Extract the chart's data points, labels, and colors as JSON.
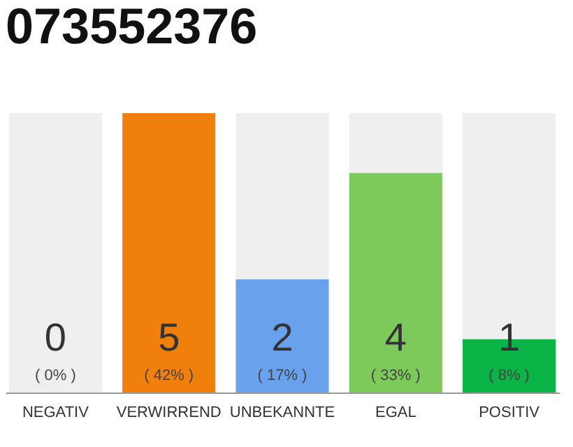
{
  "chart_data": {
    "type": "bar",
    "title": "073552376",
    "categories": [
      "NEGATIV",
      "VERWIRREND",
      "UNBEKANNTE",
      "EGAL",
      "POSITIV"
    ],
    "series": [
      {
        "colors": [
          "#e53935",
          "#f07f0b",
          "#6aa1ec",
          "#7ec95c",
          "#0ab446"
        ],
        "values": [
          0,
          42,
          17,
          33,
          8
        ],
        "value_labels": [
          "( 0% )",
          "( 42% )",
          "( 17% )",
          "( 33% )",
          "( 8% )"
        ]
      }
    ],
    "annotations": [
      "0",
      "5",
      "2",
      "4",
      "1"
    ],
    "bands": [
      {
        "axis": "x",
        "from": "NEGATIV",
        "to": "NEGATIV",
        "color": "#efefef"
      },
      {
        "axis": "x",
        "from": "UNBEKANNTE",
        "to": "UNBEKANNTE",
        "color": "#efefef"
      },
      {
        "axis": "x",
        "from": "EGAL",
        "to": "EGAL",
        "color": "#efefef"
      },
      {
        "axis": "x",
        "from": "POSITIV",
        "to": "POSITIV",
        "color": "#efefef"
      }
    ],
    "tick_labels": "x"
  }
}
